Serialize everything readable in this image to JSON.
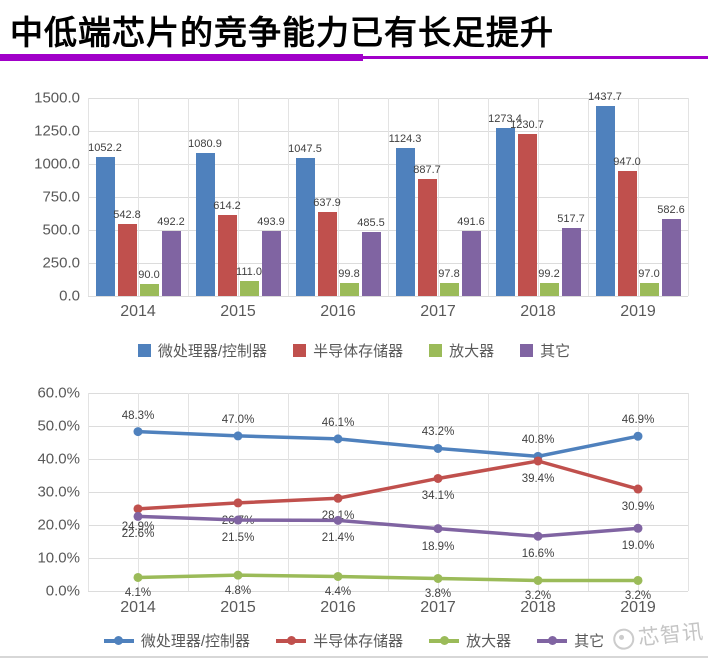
{
  "page": {
    "title": "中低端芯片的竞争能力已有长足提升",
    "watermark": "芯智讯",
    "accent_color": "#A100C9"
  },
  "palette": {
    "blue": "#4F81BD",
    "red": "#C0504D",
    "green": "#9BBB59",
    "purple": "#8064A2",
    "gridline": "#DCDCDC",
    "axis_text": "#595959",
    "label_text": "#404040"
  },
  "chart_data": [
    {
      "type": "bar",
      "title": "",
      "categories": [
        "2014",
        "2015",
        "2016",
        "2017",
        "2018",
        "2019"
      ],
      "series": [
        {
          "name": "微处理器/控制器",
          "color": "#4F81BD",
          "values": [
            1052.2,
            1080.9,
            1047.5,
            1124.3,
            1273.4,
            1437.7
          ],
          "labels": [
            "1052.2",
            "1080.9",
            "1047.5",
            "1124.3",
            "1273.4",
            "1437.7"
          ]
        },
        {
          "name": "半导体存储器",
          "color": "#C0504D",
          "values": [
            542.8,
            614.2,
            637.9,
            887.7,
            1230.7,
            947.0
          ],
          "labels": [
            "542.8",
            "614.2",
            "637.9",
            "887.7",
            "1230.7",
            "947.0"
          ]
        },
        {
          "name": "放大器",
          "color": "#9BBB59",
          "values": [
            90.0,
            111.0,
            99.8,
            97.8,
            99.2,
            97.0
          ],
          "labels": [
            "90.0",
            "111.0",
            "99.8",
            "97.8",
            "99.2",
            "97.0"
          ]
        },
        {
          "name": "其它",
          "color": "#8064A2",
          "values": [
            492.2,
            493.9,
            485.5,
            491.6,
            517.7,
            582.6
          ],
          "labels": [
            "492.2",
            "493.9",
            "485.5",
            "491.6",
            "517.7",
            "582.6"
          ]
        }
      ],
      "ylim": [
        0,
        1500
      ],
      "ytick_labels": [
        "0.0",
        "250.0",
        "500.0",
        "750.0",
        "1000.0",
        "1250.0",
        "1500.0"
      ],
      "grid": true,
      "legend_position": "bottom"
    },
    {
      "type": "line",
      "title": "",
      "categories": [
        "2014",
        "2015",
        "2016",
        "2017",
        "2018",
        "2019"
      ],
      "series": [
        {
          "name": "微处理器/控制器",
          "color": "#4F81BD",
          "values": [
            48.3,
            47.0,
            46.1,
            43.2,
            40.8,
            46.9
          ],
          "labels": [
            "48.3%",
            "47.0%",
            "46.1%",
            "43.2%",
            "40.8%",
            "46.9%"
          ]
        },
        {
          "name": "半导体存储器",
          "color": "#C0504D",
          "values": [
            24.9,
            26.7,
            28.1,
            34.1,
            39.4,
            30.9
          ],
          "labels": [
            "24.9%",
            "26.7%",
            "28.1%",
            "34.1%",
            "39.4%",
            "30.9%"
          ]
        },
        {
          "name": "放大器",
          "color": "#9BBB59",
          "values": [
            4.1,
            4.8,
            4.4,
            3.8,
            3.2,
            3.2
          ],
          "labels": [
            "4.1%",
            "4.8%",
            "4.4%",
            "3.8%",
            "3.2%",
            "3.2%"
          ]
        },
        {
          "name": "其它",
          "color": "#8064A2",
          "values": [
            22.6,
            21.5,
            21.4,
            18.9,
            16.6,
            19.0
          ],
          "labels": [
            "22.6%",
            "21.5%",
            "21.4%",
            "18.9%",
            "16.6%",
            "19.0%"
          ]
        }
      ],
      "ylim": [
        0,
        60
      ],
      "ytick_labels": [
        "0.0%",
        "10.0%",
        "20.0%",
        "30.0%",
        "40.0%",
        "50.0%",
        "60.0%"
      ],
      "grid": true,
      "legend_position": "bottom"
    }
  ]
}
